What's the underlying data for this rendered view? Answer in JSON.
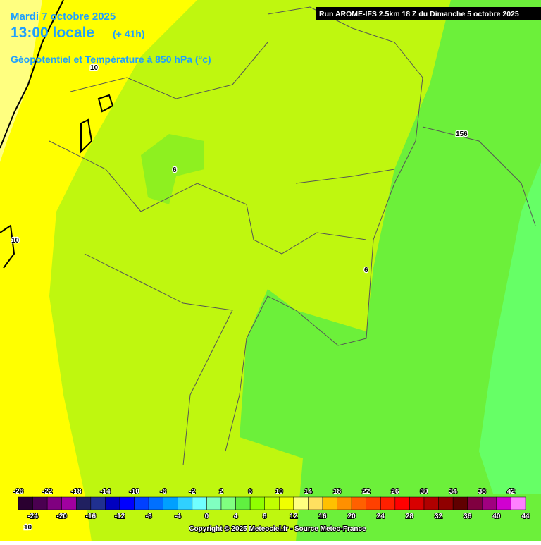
{
  "header": {
    "date": "Mardi 7 octobre 2025",
    "time": "13:00 locale",
    "lead": "(+ 41h)",
    "parameter": "Géopotentiel et Température à 850 hPa (°c)",
    "run": "Run AROME-IFS 2.5km 18 Z du Dimanche 5 octobre 2025"
  },
  "contour_labels": [
    "10",
    "6",
    "156",
    "6",
    "10",
    "10"
  ],
  "colorbar": {
    "colors": [
      "#2a0030",
      "#4a0050",
      "#800080",
      "#a000a0",
      "#202060",
      "#203090",
      "#0000c0",
      "#0000ff",
      "#0040ff",
      "#0070ff",
      "#00a0ff",
      "#30d0ff",
      "#70ffff",
      "#80ffc0",
      "#80ff80",
      "#60f040",
      "#90ff00",
      "#c0ff00",
      "#f0ff00",
      "#ffff80",
      "#ffe060",
      "#ffc000",
      "#ff9000",
      "#ff6000",
      "#ff4000",
      "#ff2000",
      "#ff0000",
      "#d80000",
      "#b00000",
      "#900000",
      "#600000",
      "#800040",
      "#a00080",
      "#d000d0",
      "#ff80ff"
    ],
    "range": [
      -26,
      44
    ],
    "top_labels": [
      -26,
      -22,
      -18,
      -14,
      -10,
      -6,
      -2,
      2,
      6,
      10,
      14,
      18,
      22,
      26,
      30,
      34,
      38,
      42
    ],
    "bottom_labels": [
      -24,
      -20,
      -16,
      -12,
      -8,
      -4,
      0,
      4,
      8,
      12,
      16,
      20,
      24,
      28,
      32,
      36,
      40,
      44
    ]
  },
  "copyright": "Copyright © 2025 Meteociel.fr - Source Meteo-France"
}
